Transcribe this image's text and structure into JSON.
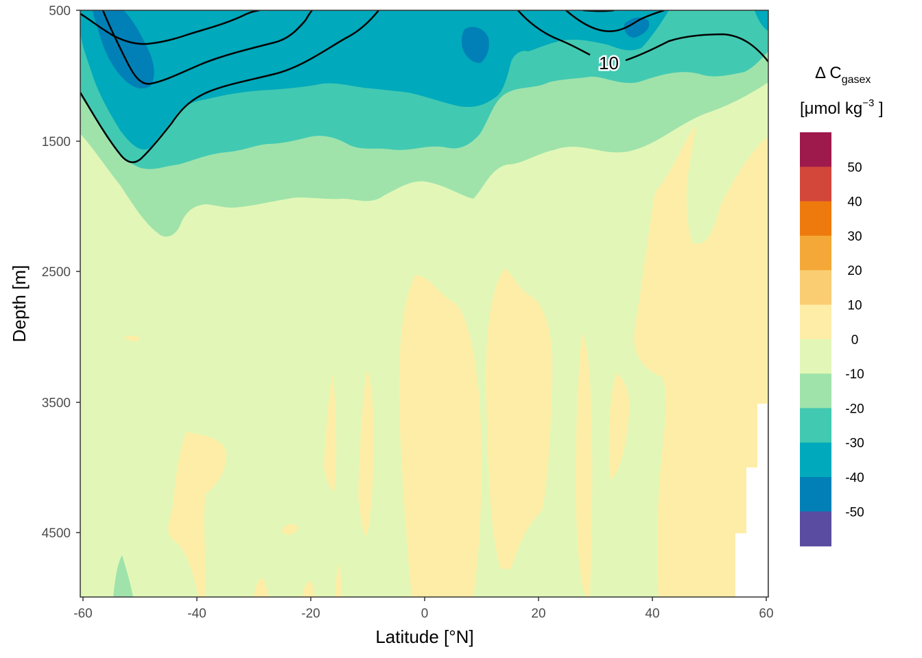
{
  "chart_data": {
    "type": "contour",
    "xlabel": "Latitude [°N]",
    "ylabel": "Depth [m]",
    "xlim": [
      -60,
      60
    ],
    "ylim": [
      500,
      5000
    ],
    "y_reversed": true,
    "x_ticks": [
      "-60",
      "-40",
      "-20",
      "0",
      "20",
      "40",
      "60"
    ],
    "y_ticks": [
      "500",
      "1500",
      "2500",
      "3500",
      "4500"
    ],
    "legend": {
      "title_main": "Δ C",
      "title_sub": "gasex",
      "units": "[μmol kg",
      "units_sup": "−3",
      "units_end": " ]",
      "breaks": [
        "50",
        "40",
        "30",
        "20",
        "10",
        "0",
        "-10",
        "-20",
        "-30",
        "-40",
        "-50"
      ],
      "colors": [
        "#9e1a4c",
        "#d2473a",
        "#ee7a0d",
        "#f4a838",
        "#fbcd73",
        "#feeda6",
        "#e2f7b7",
        "#9fe3ab",
        "#42c9b2",
        "#00a9bb",
        "#0080b6",
        "#5a4ca0"
      ]
    },
    "contour_label": "10",
    "contour_line_color": "#000000"
  }
}
